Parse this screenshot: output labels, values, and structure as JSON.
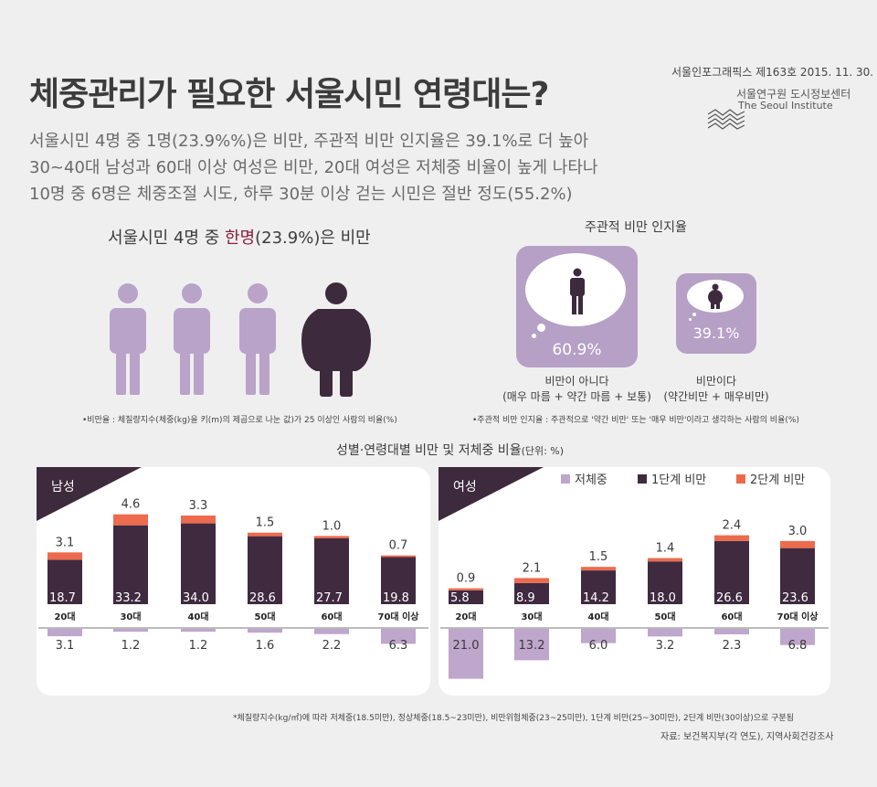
{
  "header": {
    "title": "체중관리가 필요한 서울시민 연령대는?",
    "publication": "서울인포그래픽스 제163호 2015. 11. 30.",
    "institute_ko": "서울연구원 도시정보센터",
    "institute_en": "The Seoul Institute",
    "summary": [
      "서울시민 4명 중 1명(23.9%%)은 비만, 주관적 비만 인지율은 39.1%로 더 높아",
      "30~40대 남성과 60대 이상 여성은 비만, 20대 여성은 저체중 비율이 높게 나타나",
      "10명 중 6명은 체중조절 시도, 하루 30분 이상 걷는 시민은 절반 정도(55.2%)"
    ]
  },
  "obesity": {
    "heading_pre": "서울시민 4명 중 ",
    "heading_highlight": "한명",
    "heading_post": "(23.9%)은 비만",
    "footnote": "•비만율 : 체질량지수(체중(kg)을 키(m)의 제곱으로 나눈 값)가 25 이상인 사람의 비율(%)"
  },
  "perception": {
    "title": "주관적 비만 인지율",
    "not_obese": {
      "value": "60.9%",
      "label1": "비만이 아니다",
      "label2": "(매우 마름 + 약간 마름 + 보통)"
    },
    "obese": {
      "value": "39.1%",
      "label1": "비만이다",
      "label2": "(약간비만 + 매우비만)"
    },
    "footnote": "•주관적 비만 인지율 : 주관적으로 '약간 비만' 또는 '매우 비만'이라고 생각하는 사람의 비율(%)"
  },
  "chart_title": "성별·연령대별 비만 및 저체중 비율",
  "chart_unit": "(단위: %)",
  "chart_data": [
    {
      "type": "bar",
      "panel": "남성",
      "categories": [
        "20대",
        "30대",
        "40대",
        "50대",
        "60대",
        "70대 이상"
      ],
      "series": [
        {
          "name": "1단계 비만",
          "values": [
            18.7,
            33.2,
            34.0,
            28.6,
            27.7,
            19.8
          ]
        },
        {
          "name": "2단계 비만",
          "values": [
            3.1,
            4.6,
            3.3,
            1.5,
            1.0,
            0.7
          ]
        },
        {
          "name": "저체중",
          "values": [
            3.1,
            1.2,
            1.2,
            1.6,
            2.2,
            6.3
          ]
        }
      ],
      "stacked": true
    },
    {
      "type": "bar",
      "panel": "여성",
      "categories": [
        "20대",
        "30대",
        "40대",
        "50대",
        "60대",
        "70대 이상"
      ],
      "series": [
        {
          "name": "1단계 비만",
          "values": [
            5.8,
            8.9,
            14.2,
            18.0,
            26.6,
            23.6
          ]
        },
        {
          "name": "2단계 비만",
          "values": [
            0.9,
            2.1,
            1.5,
            1.4,
            2.4,
            3.0
          ]
        },
        {
          "name": "저체중",
          "values": [
            21.0,
            13.2,
            6.0,
            3.2,
            2.3,
            6.8
          ]
        }
      ],
      "stacked": true
    }
  ],
  "legend": [
    "저체중",
    "1단계 비만",
    "2단계 비만"
  ],
  "colors": {
    "obese1": "#3f2a40",
    "obese2": "#ec6b4d",
    "underweight": "#bfa6cc",
    "accent": "#b6a0c6",
    "dark": "#3d2a3d",
    "highlight": "#8c1d3f"
  },
  "footer": {
    "scale_note": "*체질량지수(kg/㎡)에 따라 저체중(18.5미만), 정상체중(18.5~23미만), 비만위험체중(23~25미만), 1단계 비만(25~30미만), 2단계 비만(30이상)으로 구분됨",
    "source": "자료: 보건복지부(각 연도), 지역사회건강조사"
  }
}
